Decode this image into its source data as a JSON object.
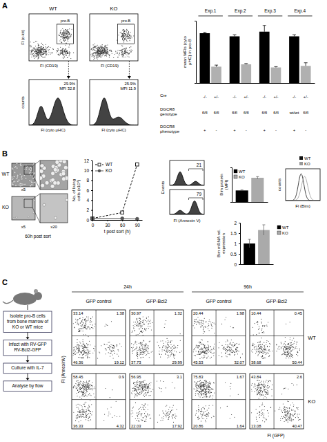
{
  "panel_labels": [
    "A",
    "B",
    "C"
  ],
  "panel_a": {
    "groups": [
      "WT",
      "KO"
    ],
    "gate": "pro-B",
    "percents": [
      "29.9%",
      "25.9%"
    ],
    "mfis": [
      "MFI 32.8",
      "MFI 11.9"
    ],
    "dot_y_label": "Fl (c-kit)",
    "dot_x_label": "Fl (CD19)",
    "hist_y_label": "counts",
    "hist_x_label": "Fl (cyto μHC)"
  },
  "table": {
    "rows": [
      {
        "label": "Cre",
        "cells": [
          "-/-",
          "+/-",
          "-/-",
          "+/-",
          "-/-",
          "+/-",
          "-/-",
          "+/-"
        ]
      },
      {
        "label": "DGCR8 genotype",
        "cells": [
          "fl/fl",
          "fl/fl",
          "fl/fl",
          "fl/fl",
          "fl/fl",
          "fl/fl",
          "wt/wt",
          "fl/fl"
        ]
      },
      {
        "label": "DGCR8 phenotype",
        "cells": [
          "+",
          "-",
          "+",
          "-",
          "+",
          "-",
          "+",
          "-"
        ]
      }
    ]
  },
  "panel_b": {
    "images": {
      "groups": [
        "WT",
        "KO"
      ],
      "magnifications": [
        "x5",
        "x5",
        "x20"
      ],
      "caption": "60h post sort"
    },
    "annexin": {
      "values": [
        21,
        79
      ],
      "y_label": "Events",
      "x_label": "Fl (Annexin V)"
    },
    "bim_hist": {
      "legend": [
        "WT",
        "KO"
      ],
      "colors": [
        "#111111",
        "#999999"
      ],
      "y_label": "counts",
      "x_label": "Fl (Bim)"
    }
  },
  "panel_c": {
    "steps": [
      "Isolate pro-B cells from bone marrow of KO or WT mice",
      "Infect with RV-GFP RV-Bcl2-GFP",
      "Culture with IL-7",
      "Analyse by flow"
    ],
    "times": [
      "24h",
      "96h"
    ],
    "conditions": [
      "GFP control",
      "GFP-Bcl2"
    ],
    "rows": [
      "WT",
      "KO"
    ],
    "y_label": "Fl (AnnexinV)",
    "x_label": "Fl (GFP)",
    "quadrants": [
      [
        [
          33.14,
          1.38,
          46.36,
          19.12
        ],
        [
          30.97,
          1.32,
          37.73,
          29.99
        ],
        [
          20.44,
          1.98,
          45.53,
          32.07
        ],
        [
          10.44,
          0.45,
          38.68,
          50.44
        ]
      ],
      [
        [
          58.45,
          0.9,
          36.33,
          4.32
        ],
        [
          56.95,
          3.1,
          22.03,
          17.92
        ],
        [
          75.83,
          1.67,
          20.86,
          1.64
        ],
        [
          43.84,
          2.6,
          13.08,
          40.47
        ]
      ]
    ]
  },
  "chart_data": [
    {
      "type": "bar",
      "y_label": "mean MFIs (cyto μHC) in pro-B",
      "categories": [
        "Exp.1",
        "Exp.2",
        "Exp.3",
        "Exp.4"
      ],
      "ylim": [
        0,
        40
      ],
      "tick_labels": false,
      "series": [
        {
          "color": "#000000",
          "values": [
            32,
            30,
            33,
            30
          ],
          "errors": [
            0.5,
            1,
            4,
            1
          ]
        },
        {
          "color": "#b0b0b0",
          "values": [
            10.5,
            12,
            10,
            11
          ],
          "errors": [
            1,
            0.5,
            0.5,
            2
          ]
        }
      ]
    },
    {
      "type": "line",
      "x_label": "t post sort (h)",
      "y_label": "No. of living cells (x10⁴)",
      "xlim": [
        0,
        100
      ],
      "xticks": [
        0,
        30,
        60,
        90
      ],
      "ylim": [
        0,
        12
      ],
      "yticks": [
        0,
        2,
        4,
        6,
        8,
        10,
        12
      ],
      "legend": "top-left",
      "series": [
        {
          "name": "WT",
          "color": "#000000",
          "marker": "square",
          "line_style": "dashed",
          "x": [
            0,
            60,
            90
          ],
          "values": [
            0.3,
            1.5,
            11.2
          ]
        },
        {
          "name": "KO",
          "color": "#555555",
          "marker": "circle",
          "line_style": "solid",
          "x": [
            0,
            60,
            90
          ],
          "values": [
            0.3,
            0.3,
            0.2
          ]
        }
      ]
    },
    {
      "type": "bar",
      "y_label": "Bim protein (MFI)",
      "categories": [
        "WT",
        "KO"
      ],
      "values": [
        1,
        2.1
      ],
      "errors": [
        0.05,
        0.1
      ],
      "colors": [
        "#000000",
        "#aaaaaa"
      ],
      "ylim": [
        0,
        3
      ],
      "tick_labels": false,
      "legend": "top-left"
    },
    {
      "type": "bar",
      "y_label": "Bim mRNA rel. expression",
      "categories": [
        "WT",
        "KO"
      ],
      "values": [
        1,
        1.65
      ],
      "errors": [
        0.2,
        0.25
      ],
      "colors": [
        "#000000",
        "#aaaaaa"
      ],
      "ylim": [
        0,
        2
      ],
      "yticks": [
        0,
        0.5,
        1,
        1.5,
        2
      ],
      "tick_labels": "y",
      "legend": "right"
    }
  ]
}
